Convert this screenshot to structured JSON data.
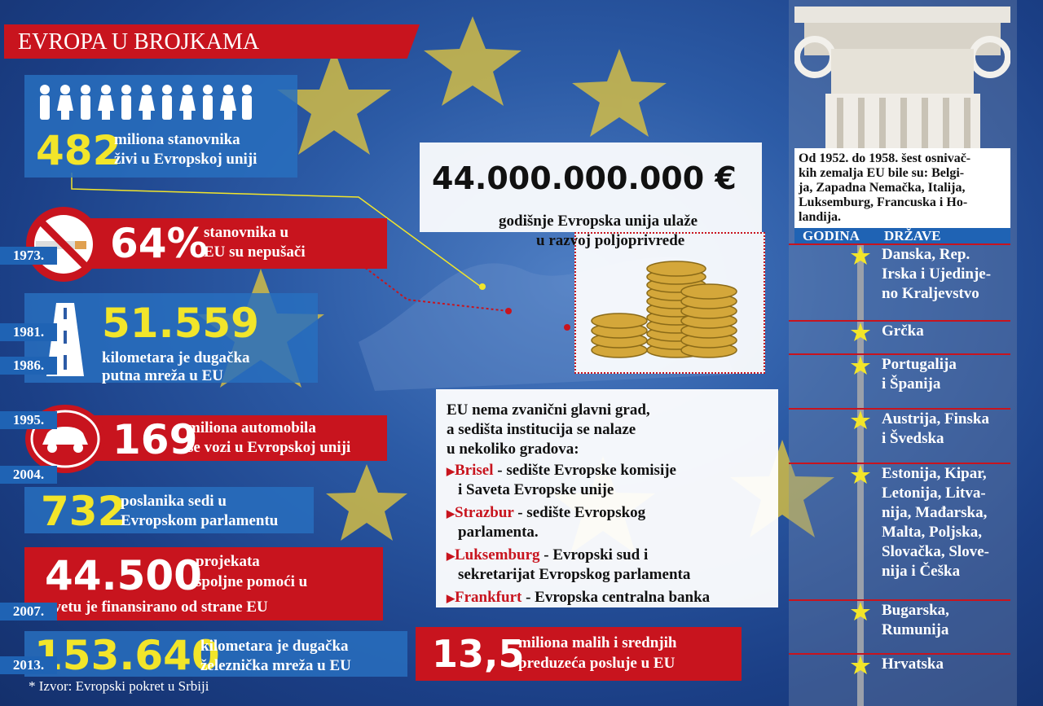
{
  "header": {
    "title": "EVROPA U BROJKAMA"
  },
  "facts": [
    {
      "number": "482",
      "lines": [
        "miliona stanovnika",
        "živi u Evropskoj uniji"
      ]
    },
    {
      "number": "64%",
      "lines": [
        "stanovnika u",
        "EU su nepušači"
      ]
    },
    {
      "number": "51.559",
      "lines": [
        "kilometara je dugačka",
        "putna mreža u EU"
      ]
    },
    {
      "number": "169",
      "lines": [
        "miliona automobila",
        "se vozi u Evropskoj uniji"
      ]
    },
    {
      "number": "732",
      "lines": [
        "poslanika sedi u",
        "Evropskom parlamentu"
      ]
    },
    {
      "number": "44.500",
      "lines": [
        "projekata",
        "spoljne pomoći u",
        "svetu je finansirano od strane EU"
      ]
    },
    {
      "number": "153.640",
      "lines": [
        "kilometara je dugačka",
        "železnička mreža u EU"
      ]
    }
  ],
  "source": "* Izvor: Evropski pokret u Srbiji",
  "budget": {
    "number": "44.000.000.000 €",
    "lines": [
      "godišnje Evropska unija ulaže",
      "u razvoj poljoprivrede"
    ]
  },
  "capital": {
    "intro": [
      "EU nema zvanični glavni grad,",
      "a sedišta institucija se nalaze",
      "u nekoliko gradova:"
    ],
    "items": [
      {
        "city": "Brisel",
        "text": " - sedište Evropske komisije",
        "cont": "i Saveta Evropske unije"
      },
      {
        "city": "Strazbur",
        "text": " - sedište Evropskog",
        "cont": "parlamenta."
      },
      {
        "city": "Luksemburg",
        "text": " - Evropski sud i",
        "cont": "sekretarijat Evropskog parlamenta"
      },
      {
        "city": "Frankfurt",
        "text": " - Evropska centralna banka",
        "cont": null
      }
    ]
  },
  "sme": {
    "number": "13,5",
    "lines": [
      "miliona malih i srednjih",
      "preduzeća posluje u EU"
    ]
  },
  "timeline": {
    "intro": [
      "Od 1952. do 1958. šest osnivač-",
      "kih zemalja EU bile su: Belgi-",
      "ja, Zapadna Nemačka, Italija,",
      "Luksemburg, Francuska i Ho-",
      "landija."
    ],
    "headers": [
      "GODINA",
      "DRŽAVE"
    ],
    "rows": [
      {
        "year": "1973.",
        "lines": [
          "Danska, Rep.",
          "Irska i Ujedinje-",
          "no Kraljevstvo"
        ]
      },
      {
        "year": "1981.",
        "lines": [
          "Grčka"
        ]
      },
      {
        "year": "1986.",
        "lines": [
          "Portugalija",
          "i Španija"
        ]
      },
      {
        "year": "1995.",
        "lines": [
          "Austrija, Finska",
          "i Švedska"
        ]
      },
      {
        "year": "2004.",
        "lines": [
          "Estonija, Kipar,",
          "Letonija, Litva-",
          "nija, Mađarska,",
          "Malta, Poljska,",
          "Slovačka, Slove-",
          "nija i Češka"
        ]
      },
      {
        "year": "2007.",
        "lines": [
          "Bugarska,",
          "Rumunija"
        ]
      },
      {
        "year": "2013.",
        "lines": [
          "Hrvatska"
        ]
      }
    ]
  }
}
